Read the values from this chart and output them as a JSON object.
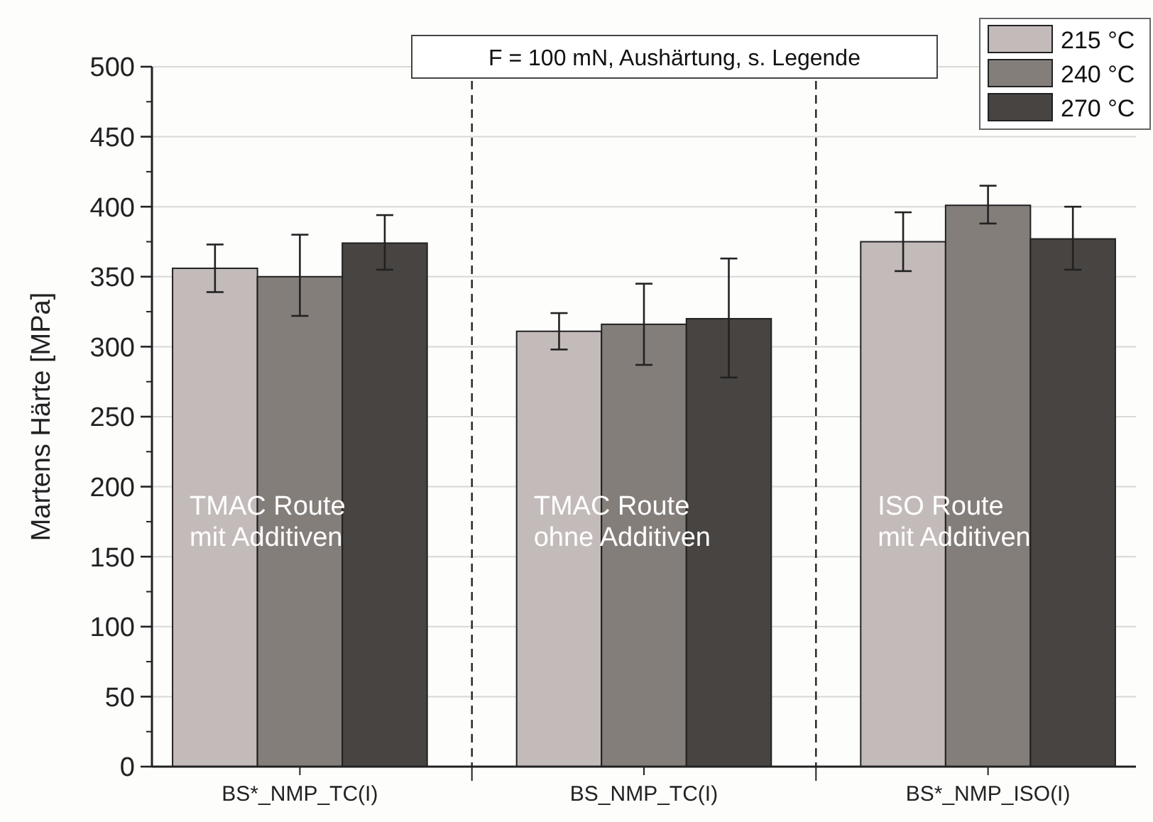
{
  "chart_data": {
    "type": "bar",
    "ylabel": "Martens Härte [MPa]",
    "categories": [
      "BS*_NMP_TC(I)",
      "BS_NMP_TC(I)",
      "BS*_NMP_ISO(I)"
    ],
    "series": [
      {
        "name": "215 °C",
        "color": "#c3bbb9",
        "values": [
          356,
          311,
          375
        ],
        "errors": [
          [
            339,
            373
          ],
          [
            298,
            324
          ],
          [
            354,
            396
          ]
        ]
      },
      {
        "name": "240 °C",
        "color": "#847e7b",
        "values": [
          350,
          316,
          401
        ],
        "errors": [
          [
            322,
            380
          ],
          [
            287,
            345
          ],
          [
            388,
            415
          ]
        ]
      },
      {
        "name": "270 °C",
        "color": "#484441",
        "values": [
          374,
          320,
          377
        ],
        "errors": [
          [
            355,
            394
          ],
          [
            278,
            363
          ],
          [
            355,
            400
          ]
        ]
      }
    ],
    "ylim": [
      0,
      500
    ],
    "yticks": [
      0,
      50,
      100,
      150,
      200,
      250,
      300,
      350,
      400,
      450,
      500
    ],
    "grid": "y",
    "legend": "top right",
    "annotations": [
      "F = 100 mN, Aushärtung, s. Legende",
      "TMAC Route\nmit Additiven",
      "TMAC Route\nohne Additiven",
      "ISO Route\nmit Additiven"
    ]
  }
}
